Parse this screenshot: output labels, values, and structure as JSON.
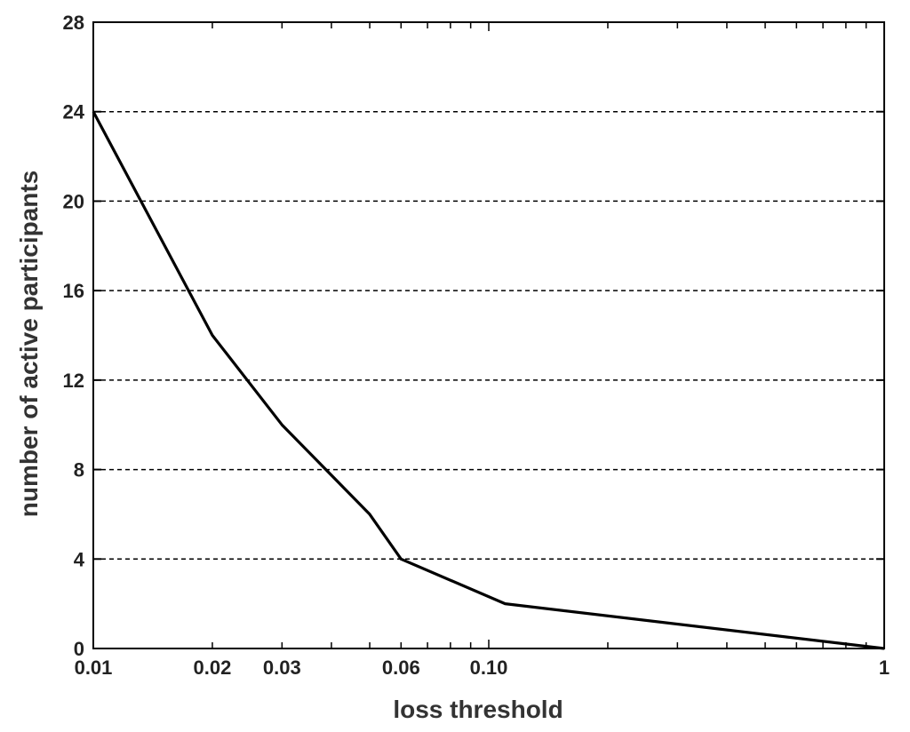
{
  "chart_data": {
    "type": "line",
    "title": "",
    "xlabel": "loss threshold",
    "ylabel": "number of active participants",
    "x_scale": "log",
    "xlim": [
      0.01,
      1
    ],
    "ylim": [
      0,
      28
    ],
    "x_ticks": [
      0.01,
      0.02,
      0.03,
      0.06,
      0.1,
      1
    ],
    "x_tick_labels": [
      "0.01",
      "0.02",
      "0.03",
      "0.06",
      "0.10",
      "1"
    ],
    "y_ticks": [
      0,
      4,
      8,
      12,
      16,
      20,
      24,
      28
    ],
    "y_tick_labels": [
      "0",
      "4",
      "8",
      "12",
      "16",
      "20",
      "24",
      "28"
    ],
    "grid": "horizontal dashed",
    "legend": "none",
    "series": [
      {
        "color": "#000000",
        "x": [
          0.01,
          0.02,
          0.03,
          0.05,
          0.06,
          0.11,
          1
        ],
        "y": [
          24,
          14,
          10,
          6,
          4,
          2,
          0
        ]
      }
    ]
  }
}
